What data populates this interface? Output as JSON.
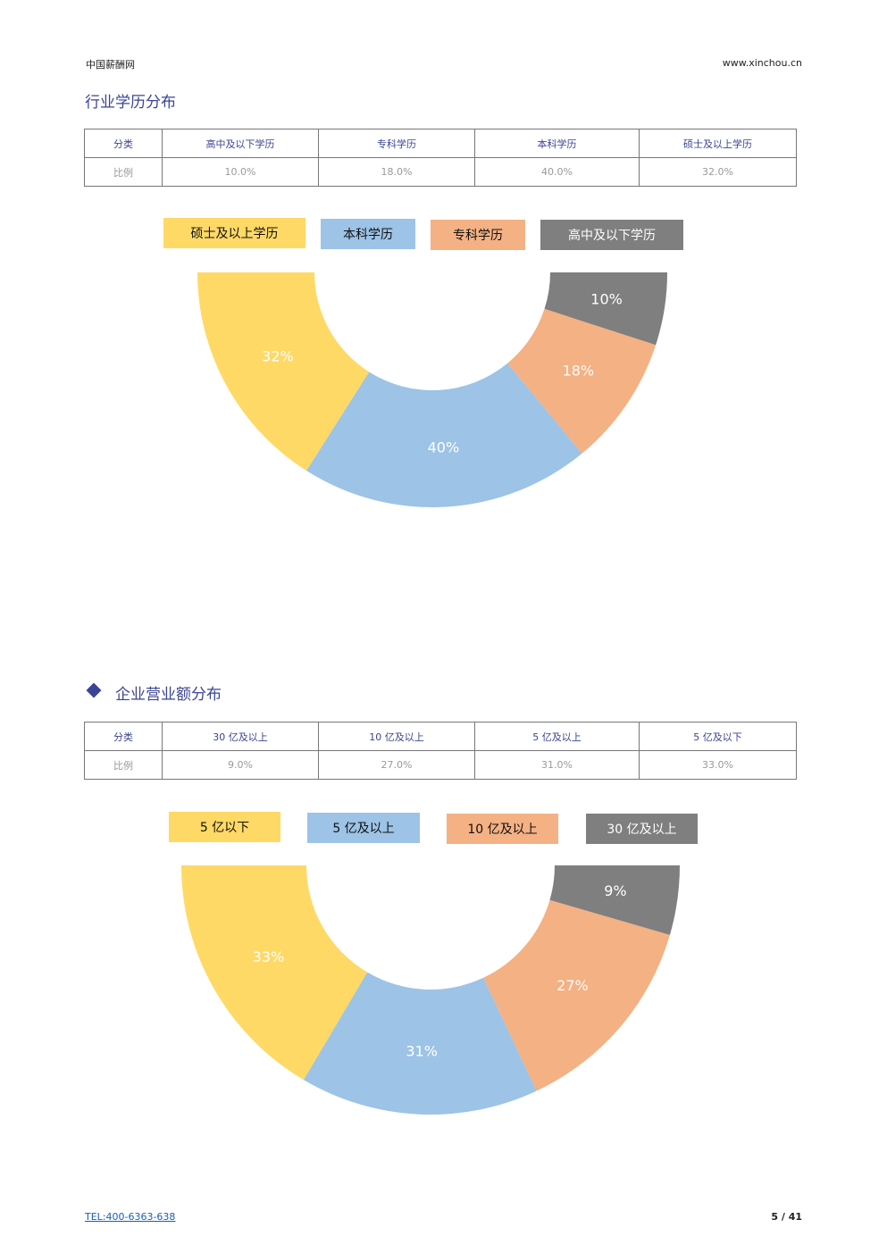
{
  "header": {
    "site_name": "中国薪酬网",
    "site_url": "www.xinchou.cn"
  },
  "colors": {
    "title": "#3b4494",
    "yellow": "#ffd966",
    "blue": "#9dc3e6",
    "orange": "#f4b183",
    "grey": "#7f7f7f"
  },
  "education": {
    "title": "行业学历分布",
    "table": {
      "label_col_header": "分类",
      "label_col_row": "比例",
      "headers": [
        "高中及以下学历",
        "专科学历",
        "本科学历",
        "硕士及以上学历"
      ],
      "values": [
        "10.0%",
        "18.0%",
        "40.0%",
        "32.0%"
      ]
    },
    "legend": [
      "硕士及以上学历",
      "本科学历",
      "专科学历",
      "高中及以下学历"
    ],
    "chart_data": {
      "type": "pie",
      "style": "half-donut",
      "categories": [
        "硕士及以上学历",
        "本科学历",
        "专科学历",
        "高中及以下学历"
      ],
      "values": [
        32,
        40,
        18,
        10
      ],
      "labels": [
        "32%",
        "40%",
        "18%",
        "10%"
      ]
    }
  },
  "revenue": {
    "title": "企业营业额分布",
    "table": {
      "label_col_header": "分类",
      "label_col_row": "比例",
      "headers": [
        "30 亿及以上",
        "10 亿及以上",
        "5 亿及以上",
        "5 亿及以下"
      ],
      "values": [
        "9.0%",
        "27.0%",
        "31.0%",
        "33.0%"
      ]
    },
    "legend": [
      "5 亿以下",
      "5 亿及以上",
      "10 亿及以上",
      "30 亿及以上"
    ],
    "chart_data": {
      "type": "pie",
      "style": "half-donut",
      "categories": [
        "5 亿以下",
        "5 亿及以上",
        "10 亿及以上",
        "30 亿及以上"
      ],
      "values": [
        33,
        31,
        27,
        9
      ],
      "labels": [
        "33%",
        "31%",
        "27%",
        "9%"
      ]
    }
  },
  "footer": {
    "tel": "TEL:400-6363-638",
    "page": "5 / 41"
  }
}
